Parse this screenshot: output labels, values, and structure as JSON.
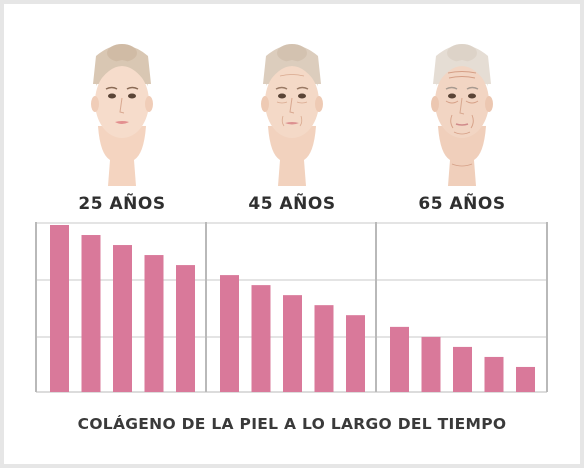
{
  "chart_data": {
    "type": "bar",
    "title": "",
    "xlabel": "COLÁGENO DE LA PIEL A LO LARGO DEL TIEMPO",
    "ylabel": "",
    "ylim": [
      0,
      100
    ],
    "grid": true,
    "bar_color": "#d9799a",
    "groups": [
      {
        "label": "25 AÑOS",
        "values": [
          100,
          94,
          88,
          82,
          76
        ]
      },
      {
        "label": "45 AÑOS",
        "values": [
          70,
          64,
          58,
          52,
          46
        ]
      },
      {
        "label": "65 AÑOS",
        "values": [
          39,
          33,
          27,
          21,
          15
        ]
      }
    ]
  },
  "faces": [
    {
      "age": "25 AÑOS",
      "icon": "young-woman-face-icon"
    },
    {
      "age": "45 AÑOS",
      "icon": "middle-aged-woman-face-icon"
    },
    {
      "age": "65 AÑOS",
      "icon": "elderly-woman-face-icon"
    }
  ]
}
